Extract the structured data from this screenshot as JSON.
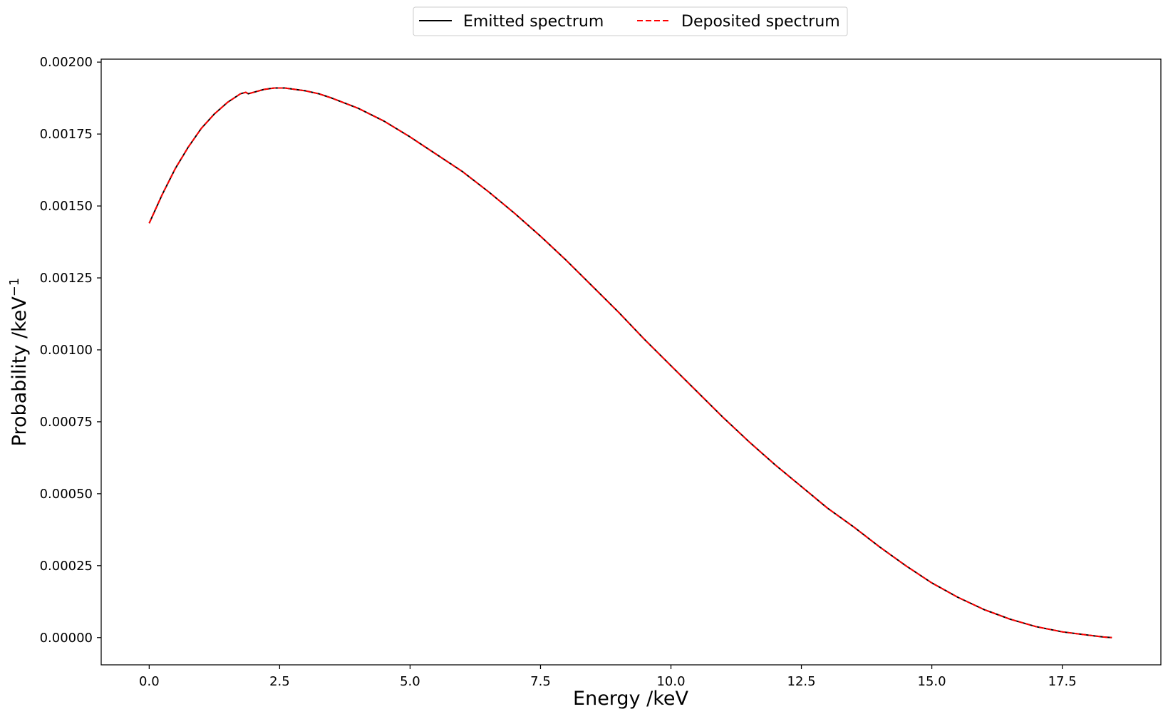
{
  "chart_data": {
    "type": "line",
    "title": "",
    "xlabel": "Energy /keV",
    "ylabel": "Probability /keV",
    "ylabel_superscript": "−1",
    "xlim": [
      -0.92,
      19.39
    ],
    "ylim": [
      -9.47e-05,
      0.0020103
    ],
    "x_ticks": [
      0.0,
      2.5,
      5.0,
      7.5,
      10.0,
      12.5,
      15.0,
      17.5
    ],
    "x_tick_labels": [
      "0.0",
      "2.5",
      "5.0",
      "7.5",
      "10.0",
      "12.5",
      "15.0",
      "17.5"
    ],
    "y_ticks": [
      0.0,
      0.00025,
      0.0005,
      0.00075,
      0.001,
      0.00125,
      0.0015,
      0.00175,
      0.002
    ],
    "y_tick_labels": [
      "0.00000",
      "0.00025",
      "0.00050",
      "0.00075",
      "0.00100",
      "0.00125",
      "0.00150",
      "0.00175",
      "0.00200"
    ],
    "grid": false,
    "legend_position": "top-center, outside plot",
    "series": [
      {
        "name": "Emitted spectrum",
        "color": "#000000",
        "style": "solid",
        "x": [
          0.0,
          0.25,
          0.5,
          0.75,
          1.0,
          1.25,
          1.5,
          1.75,
          1.85,
          1.9,
          2.0,
          2.2,
          2.4,
          2.6,
          2.8,
          3.0,
          3.25,
          3.5,
          4.0,
          4.5,
          5.0,
          5.5,
          6.0,
          6.5,
          7.0,
          7.5,
          8.0,
          8.5,
          9.0,
          9.5,
          10.0,
          10.5,
          11.0,
          11.5,
          12.0,
          12.5,
          13.0,
          13.5,
          14.0,
          14.5,
          15.0,
          15.5,
          16.0,
          16.5,
          17.0,
          17.5,
          18.0,
          18.3,
          18.45
        ],
        "y": [
          0.00144,
          0.00154,
          0.00163,
          0.001705,
          0.00177,
          0.00182,
          0.00186,
          0.00189,
          0.001895,
          0.00189,
          0.001895,
          0.001905,
          0.00191,
          0.00191,
          0.001905,
          0.0019,
          0.00189,
          0.001875,
          0.00184,
          0.001795,
          0.00174,
          0.00168,
          0.00162,
          0.00155,
          0.001475,
          0.001395,
          0.00131,
          0.00122,
          0.00113,
          0.001035,
          0.000945,
          0.000855,
          0.000765,
          0.00068,
          0.0006,
          0.000525,
          0.00045,
          0.000385,
          0.000315,
          0.00025,
          0.00019,
          0.00014,
          9.75e-05,
          6.4e-05,
          3.8e-05,
          2e-05,
          8.5e-06,
          2e-06,
          0.0
        ]
      },
      {
        "name": "Deposited spectrum",
        "color": "#ff0000",
        "style": "dashed",
        "x": [
          0.0,
          0.25,
          0.5,
          0.75,
          1.0,
          1.25,
          1.5,
          1.75,
          1.85,
          1.9,
          2.0,
          2.2,
          2.4,
          2.6,
          2.8,
          3.0,
          3.25,
          3.5,
          4.0,
          4.5,
          5.0,
          5.5,
          6.0,
          6.5,
          7.0,
          7.5,
          8.0,
          8.5,
          9.0,
          9.5,
          10.0,
          10.5,
          11.0,
          11.5,
          12.0,
          12.5,
          13.0,
          13.5,
          14.0,
          14.5,
          15.0,
          15.5,
          16.0,
          16.5,
          17.0,
          17.5,
          18.0,
          18.3,
          18.45
        ],
        "y": [
          0.00144,
          0.00154,
          0.00163,
          0.001705,
          0.00177,
          0.00182,
          0.00186,
          0.00189,
          0.001895,
          0.00189,
          0.001895,
          0.001905,
          0.00191,
          0.00191,
          0.001905,
          0.0019,
          0.00189,
          0.001875,
          0.00184,
          0.001795,
          0.00174,
          0.00168,
          0.00162,
          0.00155,
          0.001475,
          0.001395,
          0.00131,
          0.00122,
          0.00113,
          0.001035,
          0.000945,
          0.000855,
          0.000765,
          0.00068,
          0.0006,
          0.000525,
          0.00045,
          0.000385,
          0.000315,
          0.00025,
          0.00019,
          0.00014,
          9.75e-05,
          6.4e-05,
          3.8e-05,
          2e-05,
          8.5e-06,
          2e-06,
          0.0
        ]
      }
    ]
  }
}
